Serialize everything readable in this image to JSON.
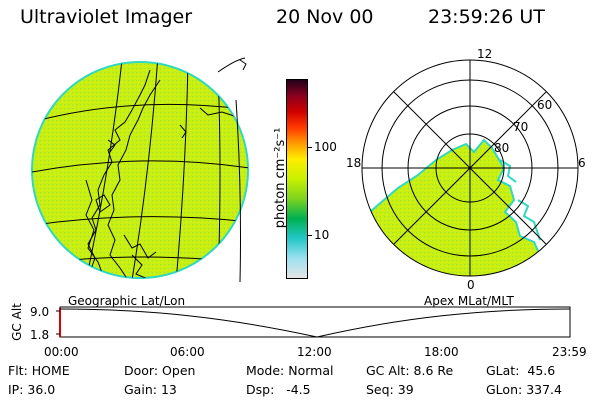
{
  "header": {
    "title": "Ultraviolet Imager",
    "date": "20 Nov 00",
    "time": "23:59:26 UT"
  },
  "colorbar": {
    "label": "photon cm⁻²s⁻¹",
    "ticks": [
      "100",
      "10"
    ],
    "stops": [
      "#d0d0d0",
      "#7fd7ec",
      "#22c7c7",
      "#00b050",
      "#7ed321",
      "#c8f000",
      "#ffee00",
      "#ff9a00",
      "#ff3a00",
      "#d00000",
      "#8a0020",
      "#300020"
    ]
  },
  "geo_map": {
    "label": "Geographic Lat/Lon",
    "fill_color": "#c8ef14",
    "edge_color": "#2fd9c0"
  },
  "polar_map": {
    "label": "Apex MLat/MLT",
    "mlt_labels": [
      "12",
      "18",
      "6",
      "0"
    ],
    "lat_labels": [
      "60",
      "70",
      "80"
    ],
    "fill_color": "#c8ef14",
    "edge_color": "#2fd9c0"
  },
  "altitude_plot": {
    "ylabel": "GC Alt",
    "y_ticks": [
      "9.0",
      "1.8"
    ],
    "x_ticks": [
      "00:00",
      "06:00",
      "12:00",
      "18:00",
      "23:59"
    ],
    "minimum_time": "12:00"
  },
  "status": {
    "row1": [
      {
        "label": "Flt:",
        "value": "HOME"
      },
      {
        "label": "Door:",
        "value": "Open"
      },
      {
        "label": "Mode:",
        "value": "Normal"
      },
      {
        "label": "GC Alt:",
        "value": "8.6 Re"
      },
      {
        "label": "GLat:",
        "value": "45.6"
      }
    ],
    "row2": [
      {
        "label": "IP:",
        "value": "36.0"
      },
      {
        "label": "Gain:",
        "value": "13"
      },
      {
        "label": "Dsp:",
        "value": "-4.5"
      },
      {
        "label": "Seq:",
        "value": "39"
      },
      {
        "label": "GLon:",
        "value": "337.4"
      }
    ]
  }
}
